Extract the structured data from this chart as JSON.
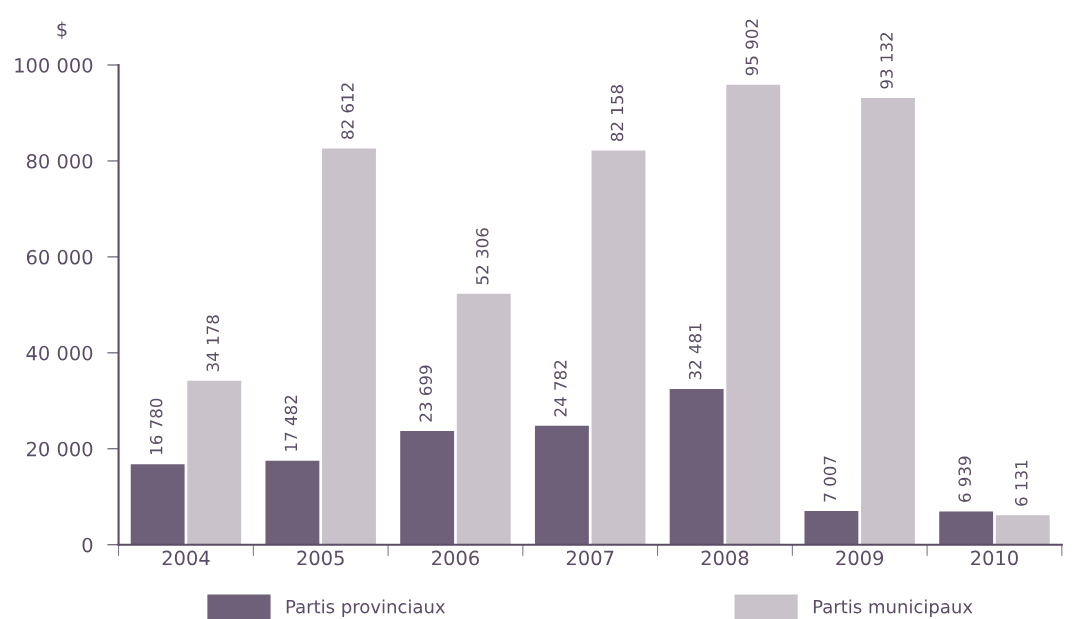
{
  "chart_data": {
    "type": "bar",
    "ylabel": "$",
    "categories": [
      "2004",
      "2005",
      "2006",
      "2007",
      "2008",
      "2009",
      "2010"
    ],
    "series": [
      {
        "name": "Partis provinciaux",
        "color": "#6e6078",
        "values": [
          16780,
          17482,
          23699,
          24782,
          32481,
          7007,
          6939
        ],
        "value_labels": [
          "16 780",
          "17 482",
          "23 699",
          "24 782",
          "32 481",
          "7 007",
          "6 939"
        ]
      },
      {
        "name": "Partis municipaux",
        "color": "#c9c2ca",
        "values": [
          34178,
          82612,
          52306,
          82158,
          95902,
          93132,
          6131
        ],
        "value_labels": [
          "34 178",
          "82 612",
          "52 306",
          "82 158",
          "95 902",
          "93 132",
          "6 131"
        ]
      }
    ],
    "ylim": [
      0,
      100000
    ],
    "yticks": [
      {
        "value": 0,
        "label": "0"
      },
      {
        "value": 20000,
        "label": "20 000"
      },
      {
        "value": 40000,
        "label": "40 000"
      },
      {
        "value": 60000,
        "label": "60 000"
      },
      {
        "value": 80000,
        "label": "80 000"
      },
      {
        "value": 100000,
        "label": "100 000"
      }
    ],
    "grid": false,
    "legend": "bottom"
  }
}
